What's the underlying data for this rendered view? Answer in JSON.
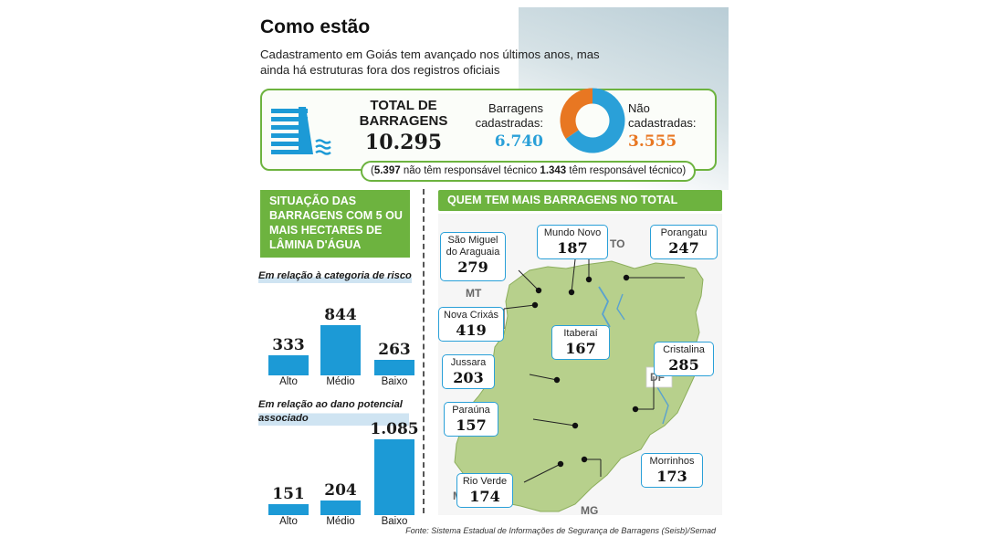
{
  "title": "Como estão",
  "subtitle": "Cadastramento em Goiás tem avançado nos últimos anos, mas ainda há estruturas fora dos registros oficiais",
  "summary": {
    "total_label": "TOTAL DE BARRAGENS",
    "total_value": "10.295",
    "registered_label": "Barragens cadastradas:",
    "registered_value": "6.740",
    "unregistered_label": "Não cadastradas:",
    "unregistered_value": "3.555",
    "tech_without_value": "5.397",
    "tech_without_label": "não têm responsável técnico",
    "tech_with_value": "1.343",
    "tech_with_label": "têm responsável técnico",
    "colors": {
      "registered": "#2aa0d8",
      "unregistered": "#e87722",
      "accent": "#6db33f"
    }
  },
  "left_section": {
    "header": "SITUAÇÃO DAS BARRAGENS COM 5 OU MAIS HECTARES DE LÂMINA D'ÁGUA",
    "risk_subtitle": "Em relação à categoria de risco",
    "damage_subtitle": "Em relação ao dano potencial associado"
  },
  "map_section": {
    "header": "QUEM TEM MAIS BARRAGENS NO TOTAL",
    "state_labels": [
      "TO",
      "MT",
      "DF",
      "MS",
      "MG"
    ],
    "cities": [
      {
        "name": "São Miguel do Araguaia",
        "value": "279"
      },
      {
        "name": "Mundo Novo",
        "value": "187"
      },
      {
        "name": "Porangatu",
        "value": "247"
      },
      {
        "name": "Nova Crixás",
        "value": "419"
      },
      {
        "name": "Itaberaí",
        "value": "167"
      },
      {
        "name": "Cristalina",
        "value": "285"
      },
      {
        "name": "Jussara",
        "value": "203"
      },
      {
        "name": "Paraúna",
        "value": "157"
      },
      {
        "name": "Morrinhos",
        "value": "173"
      },
      {
        "name": "Rio Verde",
        "value": "174"
      }
    ]
  },
  "source": "Fonte: Sistema Estadual de Informações de Segurança de Barragens (Seisb)/Semad",
  "chart_data": [
    {
      "type": "pie",
      "categories": [
        "Barragens cadastradas",
        "Não cadastradas"
      ],
      "values": [
        6740,
        3555
      ],
      "colors": [
        "#2aa0d8",
        "#e87722"
      ]
    },
    {
      "type": "bar",
      "title": "Em relação à categoria de risco",
      "categories": [
        "Alto",
        "Médio",
        "Baixo"
      ],
      "values": [
        333,
        844,
        263
      ],
      "value_labels": [
        "333",
        "844",
        "263"
      ],
      "ylim": [
        0,
        1085
      ],
      "color": "#1c9ad6"
    },
    {
      "type": "bar",
      "title": "Em relação ao dano potencial associado",
      "categories": [
        "Alto",
        "Médio",
        "Baixo"
      ],
      "values": [
        151,
        204,
        1085
      ],
      "value_labels": [
        "151",
        "204",
        "1.085"
      ],
      "ylim": [
        0,
        1085
      ],
      "color": "#1c9ad6"
    }
  ]
}
